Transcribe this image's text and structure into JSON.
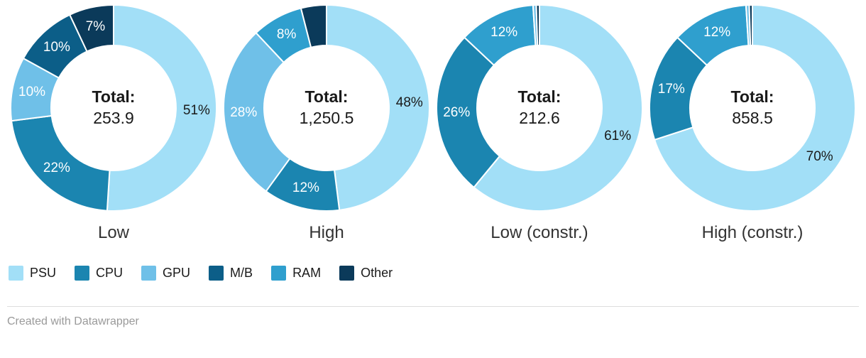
{
  "chart_data": {
    "type": "pie",
    "subtype": "donut-multiples",
    "label_min_pct": 5,
    "legend_position": "bottom-left",
    "legend": [
      {
        "label": "PSU",
        "color": "#a2dff7",
        "text_color": "#1a1a1a"
      },
      {
        "label": "CPU",
        "color": "#1b85b0",
        "text_color": "#ffffff"
      },
      {
        "label": "GPU",
        "color": "#6fc0e8",
        "text_color": "#ffffff"
      },
      {
        "label": "M/B",
        "color": "#0c5e88",
        "text_color": "#ffffff"
      },
      {
        "label": "RAM",
        "color": "#2f9fce",
        "text_color": "#ffffff"
      },
      {
        "label": "Other",
        "color": "#0b3a5a",
        "text_color": "#ffffff"
      }
    ],
    "charts": [
      {
        "title": "Low",
        "total_label": "Total:",
        "total_value": "253.9",
        "segments": [
          {
            "key": "PSU",
            "pct": 51,
            "label": "51%"
          },
          {
            "key": "CPU",
            "pct": 22,
            "label": "22%"
          },
          {
            "key": "GPU",
            "pct": 10,
            "label": "10%"
          },
          {
            "key": "M/B",
            "pct": 10,
            "label": "10%"
          },
          {
            "key": "Other",
            "pct": 7,
            "label": "7%"
          }
        ]
      },
      {
        "title": "High",
        "total_label": "Total:",
        "total_value": "1,250.5",
        "segments": [
          {
            "key": "PSU",
            "pct": 48,
            "label": "48%"
          },
          {
            "key": "CPU",
            "pct": 12,
            "label": "12%"
          },
          {
            "key": "GPU",
            "pct": 28,
            "label": "28%"
          },
          {
            "key": "RAM",
            "pct": 8,
            "label": "8%"
          },
          {
            "key": "Other",
            "pct": 4,
            "label": ""
          }
        ]
      },
      {
        "title": "Low (constr.)",
        "total_label": "Total:",
        "total_value": "212.6",
        "segments": [
          {
            "key": "PSU",
            "pct": 61,
            "label": "61%"
          },
          {
            "key": "CPU",
            "pct": 26,
            "label": "26%"
          },
          {
            "key": "RAM",
            "pct": 12,
            "label": "12%"
          },
          {
            "key": "GPU",
            "pct": 0.5,
            "label": ""
          },
          {
            "key": "Other",
            "pct": 0.5,
            "label": ""
          }
        ]
      },
      {
        "title": "High (constr.)",
        "total_label": "Total:",
        "total_value": "858.5",
        "segments": [
          {
            "key": "PSU",
            "pct": 70,
            "label": "70%"
          },
          {
            "key": "CPU",
            "pct": 17,
            "label": "17%"
          },
          {
            "key": "RAM",
            "pct": 12,
            "label": "12%"
          },
          {
            "key": "GPU",
            "pct": 0.5,
            "label": ""
          },
          {
            "key": "Other",
            "pct": 0.5,
            "label": ""
          }
        ]
      }
    ]
  },
  "footer": {
    "credit": "Created with Datawrapper"
  }
}
